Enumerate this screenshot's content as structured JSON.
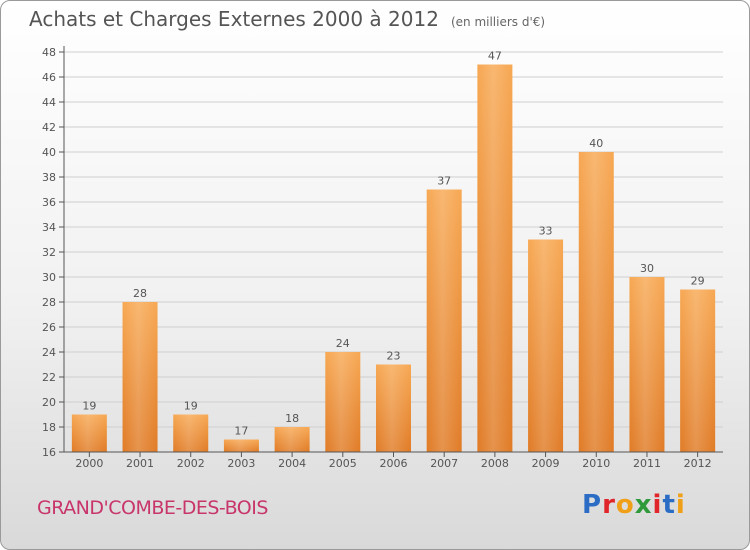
{
  "header": {
    "title": "Achats et Charges Externes 2000 à 2012",
    "subtitle": "(en milliers d'€)"
  },
  "footer": {
    "place": "GRAND'COMBE-DES-BOIS",
    "logo_text": "Proxiti",
    "logo_colors": [
      "#2b6cc4",
      "#e0262a",
      "#f0a018",
      "#2f9a3a",
      "#e0262a",
      "#2b6cc4",
      "#f0a018"
    ]
  },
  "colors": {
    "bar_light": "#f6a54e",
    "bar_dark": "#e3802a",
    "label": "#555555"
  },
  "chart_data": {
    "type": "bar",
    "categories": [
      "2000",
      "2001",
      "2002",
      "2003",
      "2004",
      "2005",
      "2006",
      "2007",
      "2008",
      "2009",
      "2010",
      "2011",
      "2012"
    ],
    "values": [
      19,
      28,
      19,
      17,
      18,
      24,
      23,
      37,
      47,
      33,
      40,
      30,
      29
    ],
    "ylim": [
      16,
      48
    ],
    "yticks": [
      16,
      18,
      20,
      22,
      24,
      26,
      28,
      30,
      32,
      34,
      36,
      38,
      40,
      42,
      44,
      46,
      48
    ],
    "grid": true,
    "data_labels": true
  }
}
